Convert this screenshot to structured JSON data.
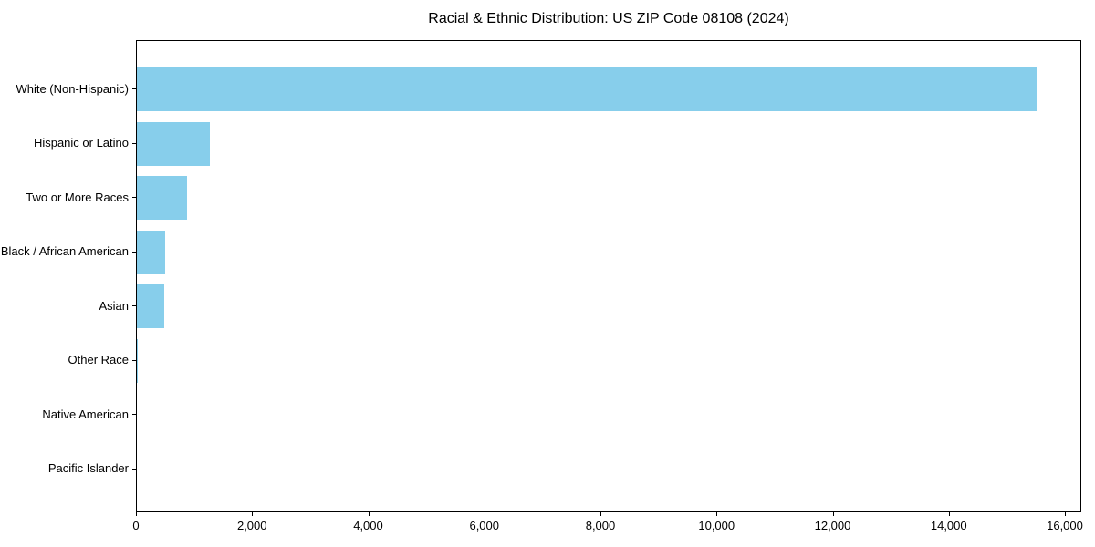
{
  "chart_data": {
    "type": "bar",
    "orientation": "horizontal",
    "title": "Racial & Ethnic Distribution: US ZIP Code 08108 (2024)",
    "categories": [
      "White (Non-Hispanic)",
      "Hispanic or Latino",
      "Two or More Races",
      "Black / African American",
      "Asian",
      "Other Race",
      "Native American",
      "Pacific Islander"
    ],
    "values": [
      15500,
      1250,
      870,
      490,
      470,
      20,
      0,
      0
    ],
    "xlabel": "",
    "ylabel": "",
    "xlim": [
      0,
      16280
    ],
    "x_ticks": [
      0,
      2000,
      4000,
      6000,
      8000,
      10000,
      12000,
      14000,
      16000
    ],
    "x_tick_labels": [
      "0",
      "2,000",
      "4,000",
      "6,000",
      "8,000",
      "10,000",
      "12,000",
      "14,000",
      "16,000"
    ],
    "bar_color": "#87CEEB",
    "axis_color": "#000000",
    "background_color": "#ffffff",
    "grid": false,
    "legend": null
  }
}
